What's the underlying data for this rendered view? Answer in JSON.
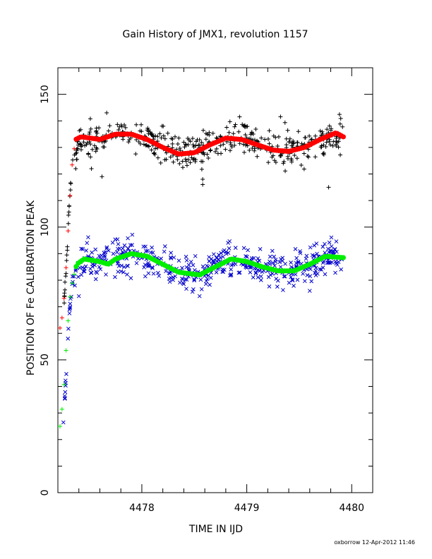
{
  "chart_data": {
    "type": "scatter",
    "title": "Gain History of JMX1, revolution 1157",
    "xlabel": "TIME IN IJD",
    "ylabel": "POSITION OF Fe CALIBRATION PEAK",
    "xlim": [
      4477.2,
      4480.2
    ],
    "ylim": [
      0,
      160
    ],
    "x_ticks": [
      4478,
      4479,
      4480
    ],
    "y_ticks": [
      0,
      50,
      100,
      150
    ],
    "grid": false,
    "series": [
      {
        "marker": "+",
        "color": "#000000",
        "description": "upper peak raw points",
        "x_range": [
          4477.25,
          4479.92
        ],
        "y_center": [
          [
            4477.25,
            66
          ],
          [
            4477.28,
            85
          ],
          [
            4477.31,
            110
          ],
          [
            4477.34,
            125
          ],
          [
            4477.4,
            133
          ],
          [
            4477.6,
            133
          ],
          [
            4477.8,
            135
          ],
          [
            4478.0,
            134
          ],
          [
            4478.2,
            131
          ],
          [
            4478.4,
            128
          ],
          [
            4478.6,
            130
          ],
          [
            4478.8,
            133
          ],
          [
            4479.0,
            133
          ],
          [
            4479.2,
            130
          ],
          [
            4479.4,
            129
          ],
          [
            4479.6,
            131
          ],
          [
            4479.8,
            135
          ],
          [
            4479.92,
            134
          ]
        ],
        "scatter": 6,
        "outliers": [
          [
            4477.37,
            122
          ],
          [
            4477.52,
            122
          ],
          [
            4477.62,
            119
          ],
          [
            4478.58,
            116
          ],
          [
            4478.58,
            118
          ],
          [
            4479.78,
            115
          ]
        ]
      },
      {
        "marker": "x",
        "color": "#0000cc",
        "description": "lower peak raw points",
        "x_range": [
          4477.25,
          4479.92
        ],
        "y_center": [
          [
            4477.25,
            25
          ],
          [
            4477.28,
            45
          ],
          [
            4477.31,
            68
          ],
          [
            4477.34,
            80
          ],
          [
            4477.4,
            87
          ],
          [
            4477.6,
            87
          ],
          [
            4477.8,
            90
          ],
          [
            4478.0,
            89
          ],
          [
            4478.2,
            85
          ],
          [
            4478.4,
            82
          ],
          [
            4478.6,
            84
          ],
          [
            4478.8,
            87
          ],
          [
            4479.0,
            86
          ],
          [
            4479.2,
            84
          ],
          [
            4479.4,
            83
          ],
          [
            4479.6,
            86
          ],
          [
            4479.8,
            89
          ],
          [
            4479.92,
            88
          ]
        ],
        "scatter": 6,
        "outliers": [
          [
            4477.4,
            74
          ],
          [
            4478.55,
            74
          ],
          [
            4479.6,
            76
          ]
        ]
      },
      {
        "marker": "curve",
        "color": "#ff0000",
        "description": "upper peak fit",
        "points": [
          [
            4477.22,
            62
          ],
          [
            4477.25,
            68
          ],
          [
            4477.28,
            86
          ],
          [
            4477.31,
            108
          ],
          [
            4477.34,
            126
          ],
          [
            4477.37,
            133
          ],
          [
            4477.42,
            134
          ],
          [
            4477.6,
            133
          ],
          [
            4477.75,
            135
          ],
          [
            4477.9,
            135
          ],
          [
            4478.05,
            133
          ],
          [
            4478.2,
            130
          ],
          [
            4478.35,
            127.5
          ],
          [
            4478.5,
            128
          ],
          [
            4478.65,
            131
          ],
          [
            4478.8,
            133.5
          ],
          [
            4478.95,
            133
          ],
          [
            4479.1,
            131
          ],
          [
            4479.25,
            129
          ],
          [
            4479.4,
            128.5
          ],
          [
            4479.55,
            130
          ],
          [
            4479.7,
            133
          ],
          [
            4479.85,
            135.5
          ],
          [
            4479.92,
            134
          ]
        ]
      },
      {
        "marker": "curve",
        "color": "#00ee00",
        "description": "lower peak fit",
        "points": [
          [
            4477.22,
            25
          ],
          [
            4477.25,
            35
          ],
          [
            4477.28,
            55
          ],
          [
            4477.31,
            72
          ],
          [
            4477.34,
            80
          ],
          [
            4477.38,
            86
          ],
          [
            4477.45,
            88
          ],
          [
            4477.6,
            87
          ],
          [
            4477.68,
            86
          ],
          [
            4477.75,
            88
          ],
          [
            4477.9,
            90
          ],
          [
            4478.05,
            89
          ],
          [
            4478.2,
            86
          ],
          [
            4478.35,
            83
          ],
          [
            4478.55,
            82
          ],
          [
            4478.7,
            85
          ],
          [
            4478.85,
            88
          ],
          [
            4479.0,
            87
          ],
          [
            4479.15,
            85
          ],
          [
            4479.3,
            83.5
          ],
          [
            4479.45,
            83.5
          ],
          [
            4479.6,
            86
          ],
          [
            4479.75,
            89
          ],
          [
            4479.92,
            88.5
          ]
        ]
      }
    ]
  },
  "footer": {
    "credit": "oxborrow 12-Apr-2012 11:46"
  }
}
